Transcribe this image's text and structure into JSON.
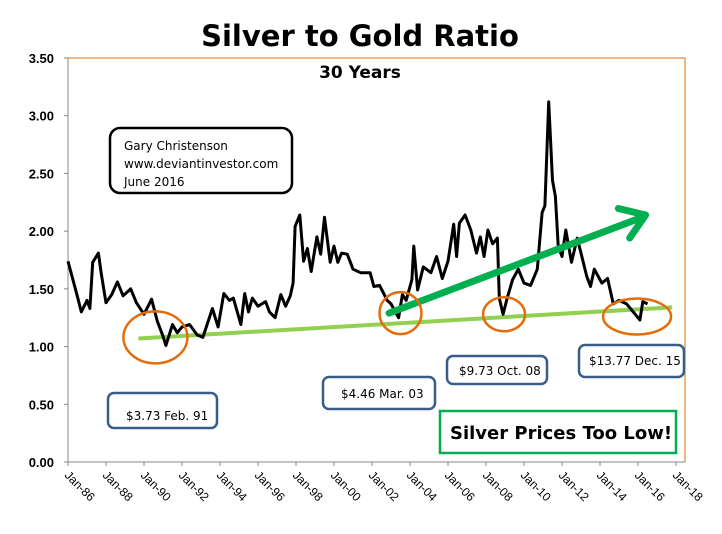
{
  "chart_data": {
    "type": "line",
    "title": "Silver to Gold Ratio",
    "subtitle": "30 Years",
    "xlabel": "",
    "ylabel": "",
    "ylim": [
      0,
      3.5
    ],
    "yticks": [
      "0.00",
      "0.50",
      "1.00",
      "1.50",
      "2.00",
      "2.50",
      "3.00",
      "3.50"
    ],
    "xlim": [
      1986,
      2018
    ],
    "xticks": [
      "Jan-86",
      "Jan-88",
      "Jan-90",
      "Jan-92",
      "Jan-94",
      "Jan-96",
      "Jan-98",
      "Jan-00",
      "Jan-02",
      "Jan-04",
      "Jan-06",
      "Jan-08",
      "Jan-10",
      "Jan-12",
      "Jan-14",
      "Jan-16",
      "Jan-18"
    ],
    "grid": false,
    "line_color": "#000000",
    "series": [
      {
        "x": [
          1986.0,
          1986.5,
          1986.7,
          1987.0,
          1987.15,
          1987.3,
          1987.6,
          1987.75,
          1988.0,
          1988.3,
          1988.6,
          1988.9,
          1989.3,
          1989.6,
          1990.0,
          1990.4,
          1990.7,
          1991.0,
          1991.15,
          1991.5,
          1991.75,
          1992.0,
          1992.4,
          1992.8,
          1993.1,
          1993.4,
          1993.6,
          1993.9,
          1994.2,
          1994.5,
          1994.7,
          1995.1,
          1995.3,
          1995.5,
          1995.7,
          1996.0,
          1996.4,
          1996.6,
          1996.9,
          1997.2,
          1997.45,
          1997.7,
          1997.85,
          1997.95,
          1998.2,
          1998.4,
          1998.6,
          1998.8,
          1999.1,
          1999.3,
          1999.5,
          1999.8,
          2000.0,
          2000.2,
          2000.4,
          2000.7,
          2001.0,
          2001.4,
          2001.9,
          2002.1,
          2002.4,
          2002.8,
          2003.0,
          2003.4,
          2003.6,
          2003.8,
          2004.1,
          2004.2,
          2004.4,
          2004.7,
          2005.1,
          2005.4,
          2005.7,
          2006.0,
          2006.3,
          2006.45,
          2006.6,
          2006.9,
          2007.2,
          2007.5,
          2007.7,
          2007.9,
          2008.1,
          2008.35,
          2008.6,
          2008.7,
          2008.9,
          2009.1,
          2009.4,
          2009.7,
          2010.0,
          2010.35,
          2010.7,
          2010.95,
          2011.1,
          2011.3,
          2011.5,
          2011.65,
          2011.8,
          2012.0,
          2012.2,
          2012.5,
          2012.8,
          2013.0,
          2013.3,
          2013.5,
          2013.7,
          2014.1,
          2014.4,
          2014.7,
          2015.0,
          2015.4,
          2015.7,
          2016.1,
          2016.25,
          2016.5
        ],
        "y": [
          1.74,
          1.43,
          1.3,
          1.4,
          1.33,
          1.73,
          1.81,
          1.63,
          1.38,
          1.45,
          1.56,
          1.44,
          1.5,
          1.38,
          1.28,
          1.41,
          1.22,
          1.09,
          1.01,
          1.19,
          1.12,
          1.17,
          1.19,
          1.1,
          1.08,
          1.23,
          1.33,
          1.17,
          1.46,
          1.4,
          1.42,
          1.19,
          1.46,
          1.3,
          1.42,
          1.35,
          1.39,
          1.3,
          1.25,
          1.45,
          1.35,
          1.44,
          1.55,
          2.04,
          2.14,
          1.74,
          1.85,
          1.65,
          1.95,
          1.8,
          2.12,
          1.73,
          1.87,
          1.73,
          1.81,
          1.8,
          1.67,
          1.64,
          1.64,
          1.52,
          1.53,
          1.4,
          1.37,
          1.25,
          1.45,
          1.4,
          1.58,
          1.87,
          1.49,
          1.69,
          1.64,
          1.78,
          1.59,
          1.74,
          2.06,
          1.78,
          2.07,
          2.14,
          2.01,
          1.81,
          1.95,
          1.78,
          2.01,
          1.89,
          1.94,
          1.42,
          1.28,
          1.41,
          1.58,
          1.67,
          1.55,
          1.53,
          1.67,
          2.16,
          2.22,
          3.12,
          2.44,
          2.3,
          1.87,
          1.78,
          2.01,
          1.73,
          1.94,
          1.81,
          1.61,
          1.52,
          1.67,
          1.55,
          1.59,
          1.37,
          1.4,
          1.37,
          1.31,
          1.23,
          1.39,
          1.37
        ]
      }
    ],
    "annotations": {
      "trend_line": {
        "x": [
          1989.7,
          2017.8
        ],
        "y": [
          1.07,
          1.34
        ],
        "color": "#92d050"
      },
      "arrow": {
        "x": [
          2002.9,
          2016.4
        ],
        "y": [
          1.29,
          2.14
        ],
        "color": "#00b050"
      },
      "circle_color": "#e46c0a",
      "circles": [
        {
          "x": 1990.6,
          "y": 1.08
        },
        {
          "x": 2003.5,
          "y": 1.29
        },
        {
          "x": 2008.95,
          "y": 1.28
        },
        {
          "x": 2015.95,
          "y": 1.26
        }
      ],
      "author_box": [
        "Gary Christenson",
        "www.deviantinvestor.com",
        "June 2016"
      ],
      "price_labels": [
        "$3.73  Feb. 91",
        "$4.46  Mar. 03",
        "$9.73  Oct. 08",
        "$13.77  Dec. 15"
      ],
      "price_box_color": "#385d8a",
      "callout": "Silver Prices Too Low!",
      "callout_color": "#00b050"
    },
    "plot_border_color": "#e46c0a"
  }
}
